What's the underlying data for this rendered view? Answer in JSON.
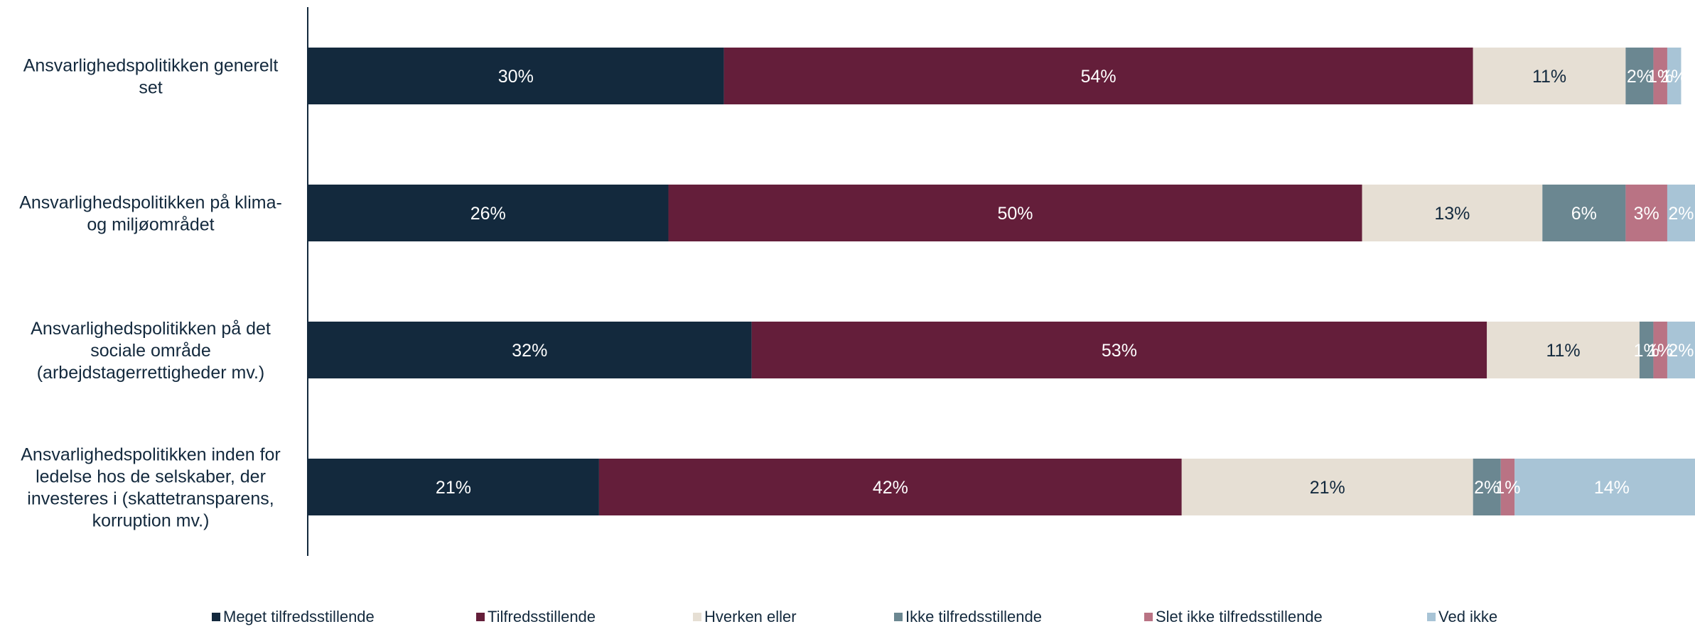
{
  "chart_data": {
    "type": "bar",
    "orientation": "horizontal",
    "stacked": true,
    "title": "",
    "xlabel": "",
    "ylabel": "",
    "xlim": [
      0,
      100
    ],
    "grid": false,
    "legend_position": "bottom",
    "categories": [
      "Ansvarlighedspolitikken generelt set",
      "Ansvarlighedspolitikken på klima- og miljøområdet",
      "Ansvarlighedspolitikken på det sociale område (arbejdstagerrettigheder mv.)",
      "Ansvarlighedspolitikken inden for ledelse hos de selskaber, der investeres i (skattetransparens, korruption mv.)"
    ],
    "category_lines": [
      [
        "Ansvarlighedspolitikken generelt",
        "set"
      ],
      [
        "Ansvarlighedspolitikken på klima-",
        "og miljøområdet"
      ],
      [
        "Ansvarlighedspolitikken på det",
        "sociale område",
        "(arbejdstagerrettigheder mv.)"
      ],
      [
        "Ansvarlighedspolitikken inden for",
        "ledelse hos de selskaber, der",
        "investeres i (skattetransparens,",
        "korruption mv.)"
      ]
    ],
    "series": [
      {
        "name": "Meget tilfredsstillende",
        "color": "#13293d",
        "label_color": "#ffffff",
        "values": [
          30,
          26,
          32,
          21
        ],
        "labels": [
          "30%",
          "26%",
          "32%",
          "21%"
        ]
      },
      {
        "name": "Tilfredsstillende",
        "color": "#641e3a",
        "label_color": "#ffffff",
        "values": [
          54,
          50,
          53,
          42
        ],
        "labels": [
          "54%",
          "50%",
          "53%",
          "42%"
        ]
      },
      {
        "name": "Hverken eller",
        "color": "#e6dfd4",
        "label_color": "#13293d",
        "values": [
          11,
          13,
          11,
          21
        ],
        "labels": [
          "11%",
          "13%",
          "11%",
          "21%"
        ]
      },
      {
        "name": "Ikke tilfredsstillende",
        "color": "#6b8791",
        "label_color": "#ffffff",
        "values": [
          2,
          6,
          1,
          2
        ],
        "labels": [
          "2%",
          "6%",
          "1%",
          "2%"
        ]
      },
      {
        "name": "Slet ikke tilfredsstillende",
        "color": "#b97384",
        "label_color": "#ffffff",
        "values": [
          1,
          3,
          1,
          1
        ],
        "labels": [
          "1%",
          "3%",
          "1%",
          "1%"
        ]
      },
      {
        "name": "Ved ikke",
        "color": "#a8c4d6",
        "label_color": "#ffffff",
        "values": [
          1,
          2,
          2,
          14
        ],
        "labels": [
          "1%",
          "2%",
          "2%",
          "14%"
        ]
      }
    ]
  }
}
